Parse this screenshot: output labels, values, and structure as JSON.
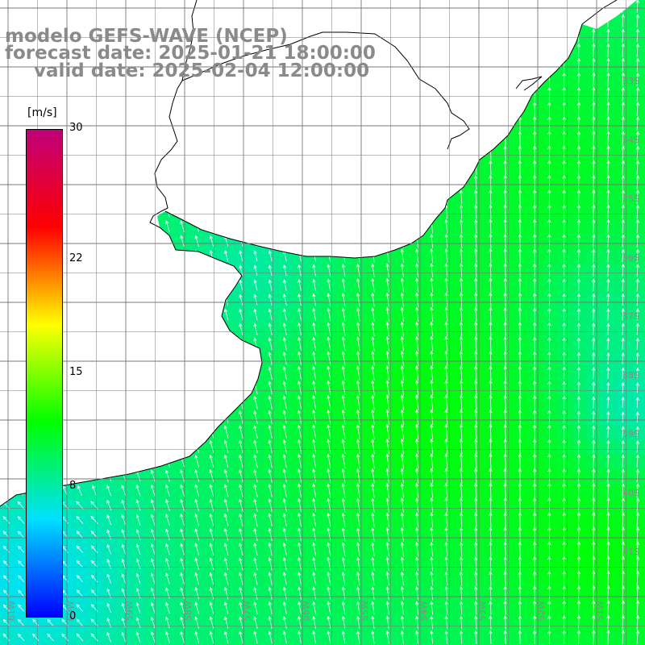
{
  "title": {
    "line1": "modelo GEFS-WAVE (NCEP)",
    "line2": "forecast date: 2025-01-21 18:00:00",
    "line3": "valid date: 2025-02-04 12:00:00"
  },
  "colorbar": {
    "unit": "[m/s]",
    "min": 0,
    "max": 30,
    "ticks": [
      "30",
      "22",
      "15",
      "8",
      "0"
    ],
    "tick_values": [
      30,
      22,
      15,
      8,
      0
    ],
    "colors": [
      "#0000ff",
      "#00e0ff",
      "#00ff00",
      "#ffff00",
      "#ff0000",
      "#c0007a"
    ]
  },
  "lat_labels": [
    "33S",
    "34S",
    "35S",
    "36S",
    "37S",
    "38S",
    "39S",
    "40S",
    "41S"
  ],
  "lon_labels": [
    "61W",
    "60W",
    "59W",
    "58W",
    "57W",
    "56W",
    "55W",
    "54W",
    "53W",
    "52W",
    "51W"
  ],
  "wind_field": {
    "description_units": "m/s",
    "coast_color": "#000000",
    "grid_color": "#777777",
    "arrow_color": "#ffffff",
    "land_color": "#ffffff"
  }
}
